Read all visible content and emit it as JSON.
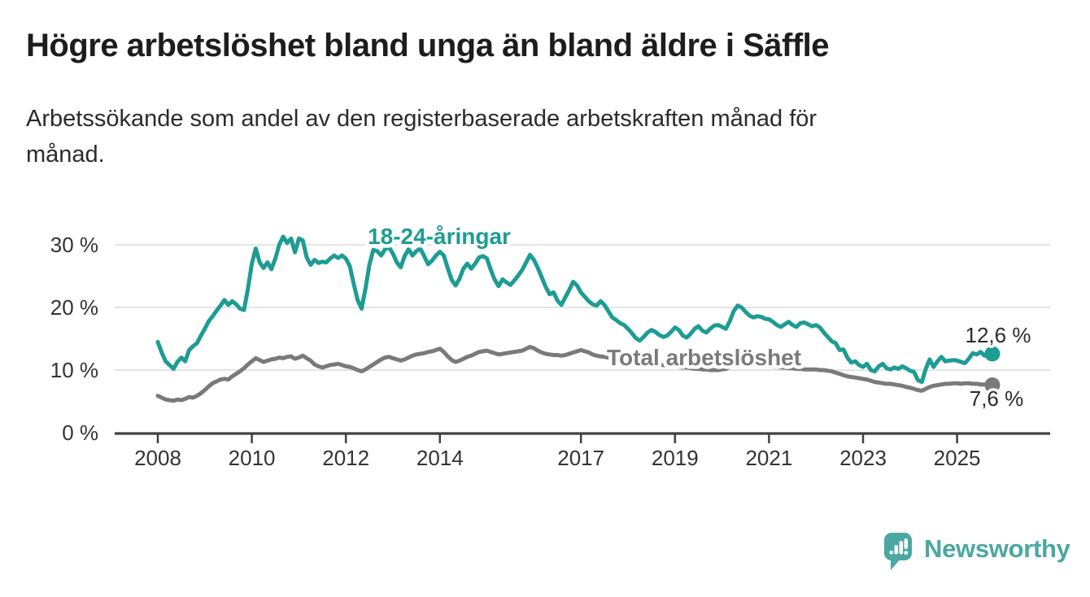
{
  "header": {
    "title": "Högre arbetslöshet bland unga än bland äldre i Säffle",
    "subtitle": "Arbetssökande som andel av den registerbaserade arbetskraften månad för\nmånad."
  },
  "footer": {
    "brand": "Newsworthy",
    "brand_color": "#4BA7A2",
    "brand_icon": "speech-bubble-with-bar-chart-and-exclamation"
  },
  "chart_data": {
    "type": "line",
    "title": "",
    "xlabel": "",
    "ylabel": "%",
    "x_start_year": 2008,
    "points_per_year": 12,
    "x_range": [
      2008.0,
      2025.75
    ],
    "ylim": [
      0,
      32
    ],
    "grid": "horizontal",
    "grid_color": "#dcdcdc",
    "axis_color": "#404040",
    "background_color": "#ffffff",
    "legend_position": "inline-labels",
    "x_axis": {
      "ticks": [
        {
          "year": 2008,
          "label": "2008"
        },
        {
          "year": 2010,
          "label": "2010"
        },
        {
          "year": 2012,
          "label": "2012"
        },
        {
          "year": 2014,
          "label": "2014"
        },
        {
          "year": 2017,
          "label": "2017"
        },
        {
          "year": 2019,
          "label": "2019"
        },
        {
          "year": 2021,
          "label": "2021"
        },
        {
          "year": 2023,
          "label": "2023"
        },
        {
          "year": 2025,
          "label": "2025"
        }
      ]
    },
    "y_axis": {
      "ticks": [
        {
          "value": 0,
          "label": "0 %"
        },
        {
          "value": 10,
          "label": "10 %"
        },
        {
          "value": 20,
          "label": "20 %"
        },
        {
          "value": 30,
          "label": "30 %"
        }
      ]
    },
    "series": [
      {
        "name": "18-24-åringar",
        "color": "#1D9C94",
        "end_label": "12,6 %",
        "end_value": 12.6,
        "values": [
          14.5,
          12.8,
          11.4,
          10.8,
          10.2,
          11.3,
          12.0,
          11.4,
          13.2,
          13.8,
          14.3,
          15.5,
          16.6,
          17.8,
          18.6,
          19.5,
          20.3,
          21.2,
          20.4,
          21.0,
          20.5,
          19.8,
          19.6,
          23.0,
          27.0,
          29.4,
          27.2,
          26.3,
          27.2,
          26.1,
          27.8,
          30.0,
          31.3,
          30.3,
          31.0,
          28.8,
          31.0,
          30.7,
          28.0,
          26.8,
          27.6,
          27.1,
          27.3,
          27.2,
          27.8,
          28.3,
          27.9,
          28.3,
          27.8,
          26.6,
          23.8,
          21.2,
          19.8,
          23.0,
          26.8,
          29.2,
          29.0,
          28.3,
          29.3,
          29.6,
          28.6,
          27.2,
          26.4,
          28.2,
          29.3,
          28.3,
          29.0,
          29.4,
          28.2,
          26.9,
          27.5,
          28.3,
          28.9,
          28.3,
          26.3,
          24.4,
          23.5,
          24.6,
          26.2,
          27.0,
          26.2,
          27.0,
          28.0,
          28.2,
          27.8,
          26.0,
          24.4,
          23.4,
          24.5,
          24.0,
          23.6,
          24.3,
          25.1,
          26.0,
          27.2,
          28.4,
          27.6,
          26.3,
          24.8,
          23.3,
          22.1,
          22.4,
          21.1,
          20.4,
          21.6,
          22.8,
          24.1,
          23.5,
          22.4,
          21.7,
          21.0,
          20.5,
          20.3,
          21.0,
          20.4,
          19.4,
          18.4,
          18.0,
          17.5,
          17.2,
          16.6,
          15.9,
          15.1,
          14.7,
          15.3,
          16.0,
          16.4,
          16.1,
          15.6,
          15.3,
          15.5,
          16.1,
          16.8,
          16.4,
          15.5,
          15.2,
          15.8,
          16.6,
          17.0,
          16.3,
          16.0,
          16.6,
          17.1,
          17.2,
          16.9,
          16.6,
          17.8,
          19.4,
          20.3,
          20.0,
          19.3,
          18.7,
          18.4,
          18.6,
          18.5,
          18.2,
          18.1,
          17.7,
          17.2,
          16.9,
          17.3,
          17.7,
          17.2,
          16.9,
          17.5,
          17.6,
          17.3,
          17.0,
          17.2,
          16.8,
          16.0,
          15.3,
          14.6,
          14.3,
          13.2,
          13.3,
          12.0,
          11.2,
          11.4,
          10.8,
          10.5,
          11.0,
          10.0,
          9.8,
          10.6,
          11.0,
          10.3,
          10.1,
          10.4,
          10.2,
          10.6,
          10.3,
          9.9,
          9.7,
          8.4,
          8.1,
          10.2,
          11.7,
          10.5,
          11.4,
          12.1,
          11.4,
          11.5,
          11.6,
          11.5,
          11.3,
          11.1,
          11.8,
          12.7,
          12.5,
          12.9,
          12.3,
          12.5,
          12.6
        ]
      },
      {
        "name": "Total arbetslöshet",
        "color": "#7A7A7A",
        "end_label": "7,6 %",
        "end_value": 7.6,
        "values": [
          5.9,
          5.6,
          5.3,
          5.2,
          5.1,
          5.3,
          5.2,
          5.4,
          5.7,
          5.6,
          5.9,
          6.3,
          6.8,
          7.4,
          7.9,
          8.2,
          8.5,
          8.6,
          8.5,
          9.0,
          9.4,
          9.8,
          10.3,
          10.9,
          11.4,
          11.9,
          11.6,
          11.3,
          11.5,
          11.7,
          11.8,
          12.0,
          11.9,
          12.1,
          12.2,
          11.8,
          12.0,
          12.3,
          11.9,
          11.5,
          10.9,
          10.6,
          10.4,
          10.6,
          10.8,
          10.9,
          11.0,
          10.8,
          10.6,
          10.5,
          10.3,
          10.0,
          9.8,
          10.1,
          10.5,
          10.9,
          11.3,
          11.7,
          12.0,
          12.1,
          11.9,
          11.7,
          11.5,
          11.7,
          12.0,
          12.3,
          12.5,
          12.6,
          12.7,
          12.9,
          13.0,
          13.2,
          13.4,
          12.9,
          12.2,
          11.6,
          11.3,
          11.5,
          11.8,
          12.1,
          12.3,
          12.6,
          12.9,
          13.0,
          13.1,
          12.9,
          12.7,
          12.5,
          12.6,
          12.7,
          12.8,
          12.9,
          13.0,
          13.1,
          13.4,
          13.7,
          13.5,
          13.1,
          12.8,
          12.6,
          12.5,
          12.4,
          12.4,
          12.3,
          12.4,
          12.6,
          12.8,
          13.0,
          13.2,
          13.0,
          12.8,
          12.5,
          12.3,
          12.2,
          12.1,
          12.0,
          11.9,
          11.8,
          11.6,
          11.5,
          11.4,
          11.3,
          11.2,
          11.1,
          11.1,
          11.0,
          10.9,
          10.9,
          10.8,
          10.8,
          10.7,
          10.7,
          10.6,
          10.5,
          10.4,
          10.4,
          10.3,
          10.2,
          10.2,
          10.1,
          10.1,
          10.0,
          10.0,
          10.0,
          10.1,
          10.2,
          10.5,
          10.8,
          11.0,
          11.1,
          11.0,
          10.9,
          10.9,
          10.8,
          10.8,
          10.7,
          10.7,
          10.6,
          10.5,
          10.4,
          10.4,
          10.3,
          10.3,
          10.2,
          10.2,
          10.1,
          10.1,
          10.1,
          10.1,
          10.0,
          10.0,
          9.9,
          9.8,
          9.6,
          9.4,
          9.2,
          9.0,
          8.9,
          8.8,
          8.7,
          8.6,
          8.5,
          8.3,
          8.1,
          8.0,
          7.9,
          7.8,
          7.8,
          7.7,
          7.6,
          7.5,
          7.3,
          7.2,
          7.0,
          6.8,
          6.7,
          7.0,
          7.3,
          7.5,
          7.6,
          7.7,
          7.8,
          7.8,
          7.9,
          7.9,
          7.8,
          7.9,
          7.9,
          7.8,
          7.8,
          7.7,
          7.7,
          7.6,
          7.6
        ]
      }
    ]
  }
}
